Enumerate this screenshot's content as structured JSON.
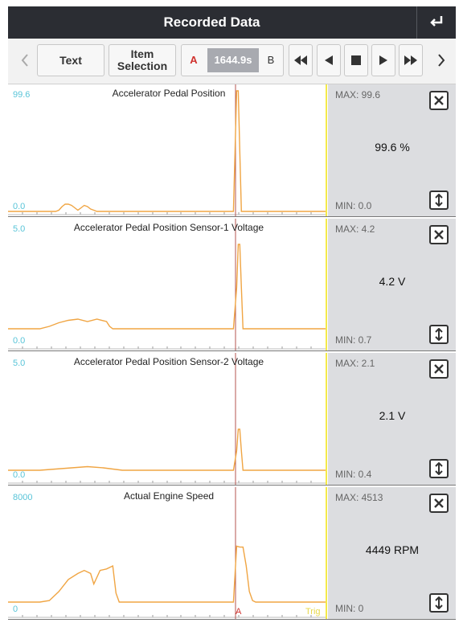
{
  "window": {
    "title": "Recorded Data"
  },
  "toolbar": {
    "text_label": "Text",
    "item_selection_label": "Item Selection",
    "range_a": "A",
    "range_time": "1644.9s",
    "range_b": "B"
  },
  "icons": {
    "back": "return-arrow-icon",
    "prev": "chevron-left-icon",
    "next": "chevron-right-icon",
    "rewind": "rewind-icon",
    "step_back": "step-back-icon",
    "stop": "stop-icon",
    "play": "play-icon",
    "fast_forward": "fast-forward-icon",
    "close": "close-icon",
    "scale": "vertical-resize-icon"
  },
  "colors": {
    "trace": "#f0a543",
    "cursor": "#b5554f",
    "axis_label": "#58c4d8",
    "trigger": "#e8d84a",
    "range_a": "#d0312d"
  },
  "panels": [
    {
      "title": "Accelerator Pedal Position",
      "y_max": "99.6",
      "y_min": "0.0",
      "max_label": "MAX: 99.6",
      "min_label": "MIN: 0.0",
      "current_value": "99.6 %",
      "chart_data": {
        "type": "line",
        "x": [
          0,
          0.15,
          0.16,
          0.17,
          0.18,
          0.19,
          0.2,
          0.21,
          0.22,
          0.23,
          0.24,
          0.25,
          0.26,
          0.27,
          0.28,
          0.29,
          0.3,
          0.31,
          0.32,
          0.33,
          0.34,
          0.35,
          0.36,
          0.37,
          0.38,
          0.39,
          0.4,
          0.41,
          0.42,
          0.43,
          0.44,
          0.45,
          0.46,
          0.47,
          0.48,
          0.49,
          0.5,
          0.51,
          0.52,
          0.53,
          0.54,
          0.55,
          0.56,
          0.57,
          0.58,
          0.59,
          0.6,
          0.61,
          0.62,
          0.63,
          0.64,
          0.65,
          0.66,
          0.67,
          0.68,
          0.69,
          0.7,
          0.71,
          0.715,
          0.72,
          0.725,
          0.73,
          0.735,
          0.74,
          0.75,
          0.8,
          1
        ],
        "y": [
          0,
          0,
          1,
          4,
          6,
          6,
          5,
          3,
          1,
          3,
          5,
          4,
          2,
          1,
          0,
          0,
          0,
          0,
          0,
          0,
          0,
          0,
          0,
          0,
          0,
          0,
          0,
          0,
          0,
          0,
          0,
          0,
          0,
          0,
          0,
          0,
          0,
          0,
          0,
          0,
          0,
          0,
          0,
          0,
          0,
          0,
          0,
          0,
          0,
          0,
          0,
          0,
          0,
          0,
          0,
          0,
          0,
          0,
          50,
          99.6,
          99.6,
          50,
          0,
          0,
          0,
          0,
          0
        ],
        "ylim": [
          0,
          99.6
        ]
      }
    },
    {
      "title": "Accelerator Pedal Position Sensor-1 Voltage",
      "y_max": "5.0",
      "y_min": "0.0",
      "max_label": "MAX: 4.2",
      "min_label": "MIN: 0.7",
      "current_value": "4.2 V",
      "chart_data": {
        "type": "line",
        "x": [
          0,
          0.1,
          0.13,
          0.16,
          0.19,
          0.22,
          0.25,
          0.28,
          0.31,
          0.32,
          0.33,
          0.36,
          0.4,
          0.5,
          0.6,
          0.7,
          0.71,
          0.72,
          0.725,
          0.73,
          0.735,
          0.74,
          0.75,
          0.8,
          1
        ],
        "y": [
          0.7,
          0.7,
          0.8,
          0.95,
          1.05,
          1.1,
          1.0,
          1.1,
          1.0,
          0.8,
          0.7,
          0.7,
          0.7,
          0.7,
          0.7,
          0.7,
          0.7,
          2.4,
          4.2,
          4.2,
          2.4,
          0.7,
          0.7,
          0.7,
          0.7
        ],
        "ylim": [
          0,
          5.0
        ]
      }
    },
    {
      "title": "Accelerator Pedal Position Sensor-2 Voltage",
      "y_max": "5.0",
      "y_min": "0.0",
      "max_label": "MAX: 2.1",
      "min_label": "MIN: 0.4",
      "current_value": "2.1 V",
      "chart_data": {
        "type": "line",
        "x": [
          0,
          0.1,
          0.15,
          0.2,
          0.25,
          0.3,
          0.33,
          0.36,
          0.5,
          0.6,
          0.7,
          0.71,
          0.72,
          0.725,
          0.73,
          0.735,
          0.74,
          0.75,
          0.8,
          1
        ],
        "y": [
          0.4,
          0.4,
          0.45,
          0.5,
          0.55,
          0.5,
          0.45,
          0.4,
          0.4,
          0.4,
          0.4,
          0.4,
          1.2,
          2.1,
          2.1,
          1.2,
          0.4,
          0.4,
          0.4,
          0.4
        ],
        "ylim": [
          0,
          5.0
        ]
      }
    },
    {
      "title": "Actual Engine Speed",
      "y_max": "8000",
      "y_min": "0",
      "max_label": "MAX: 4513",
      "min_label": "MIN: 0",
      "current_value": "4449 RPM",
      "chart_data": {
        "type": "line",
        "x": [
          0,
          0.1,
          0.13,
          0.16,
          0.19,
          0.22,
          0.24,
          0.26,
          0.27,
          0.29,
          0.31,
          0.33,
          0.34,
          0.35,
          0.4,
          0.5,
          0.6,
          0.7,
          0.71,
          0.72,
          0.73,
          0.74,
          0.75,
          0.76,
          0.77,
          0.78,
          0.8,
          1
        ],
        "y": [
          800,
          800,
          900,
          1500,
          2300,
          2700,
          2900,
          2700,
          2000,
          2900,
          3000,
          3200,
          1400,
          800,
          800,
          800,
          800,
          800,
          800,
          4513,
          4449,
          4449,
          3200,
          1500,
          900,
          800,
          800,
          800
        ],
        "ylim": [
          0,
          8000
        ]
      }
    }
  ],
  "footer": {
    "trigger_label": "Trig",
    "cursor_label": "A"
  }
}
